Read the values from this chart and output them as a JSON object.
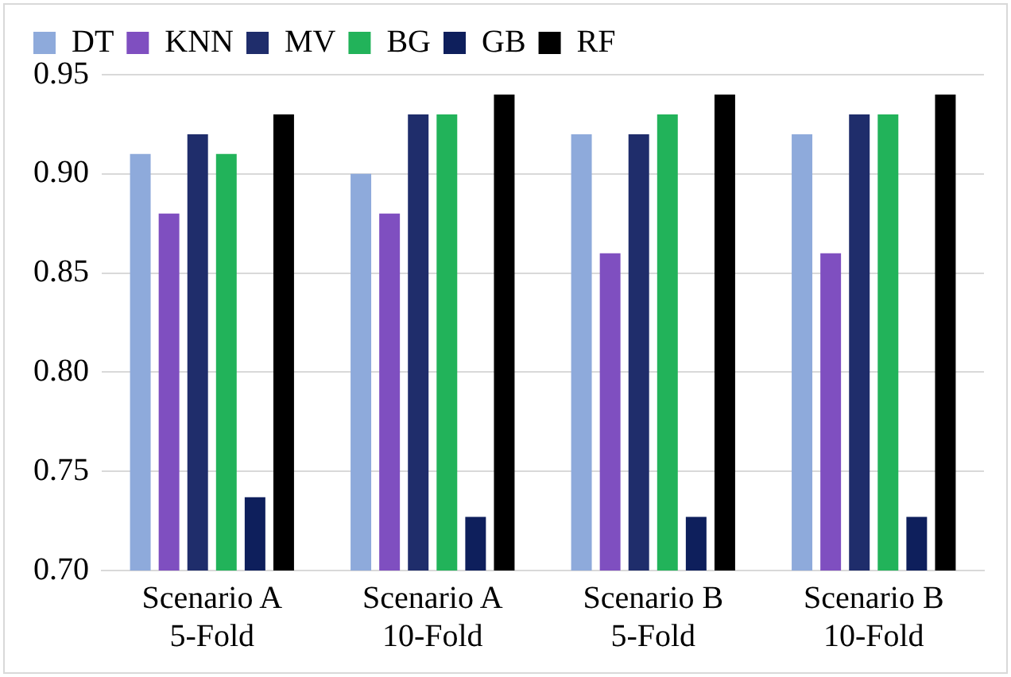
{
  "chart_data": {
    "type": "bar",
    "categories": [
      "Scenario A 5-Fold",
      "Scenario A 10-Fold",
      "Scenario B 5-Fold",
      "Scenario B 10-Fold"
    ],
    "series": [
      {
        "name": "DT",
        "color": "#8eaadb",
        "values": [
          0.91,
          0.9,
          0.92,
          0.92
        ]
      },
      {
        "name": "KNN",
        "color": "#7f4fc0",
        "values": [
          0.88,
          0.88,
          0.86,
          0.86
        ]
      },
      {
        "name": "MV",
        "color": "#1f2d6b",
        "values": [
          0.92,
          0.93,
          0.92,
          0.93
        ]
      },
      {
        "name": "BG",
        "color": "#22b35a",
        "values": [
          0.91,
          0.93,
          0.93,
          0.93
        ]
      },
      {
        "name": "GB",
        "color": "#0e1f5c",
        "values": [
          0.737,
          0.727,
          0.727,
          0.727
        ]
      },
      {
        "name": "RF",
        "color": "#000000",
        "values": [
          0.93,
          0.94,
          0.94,
          0.94
        ]
      }
    ],
    "ylim": [
      0.7,
      0.95
    ],
    "yticks": [
      {
        "value": 0.7,
        "label": "0.70"
      },
      0.75,
      {
        "value": 0.8,
        "label": "0.80"
      },
      0.85,
      {
        "value": 0.9,
        "label": "0.90"
      },
      0.95
    ],
    "grid": "y",
    "legend": "top"
  }
}
